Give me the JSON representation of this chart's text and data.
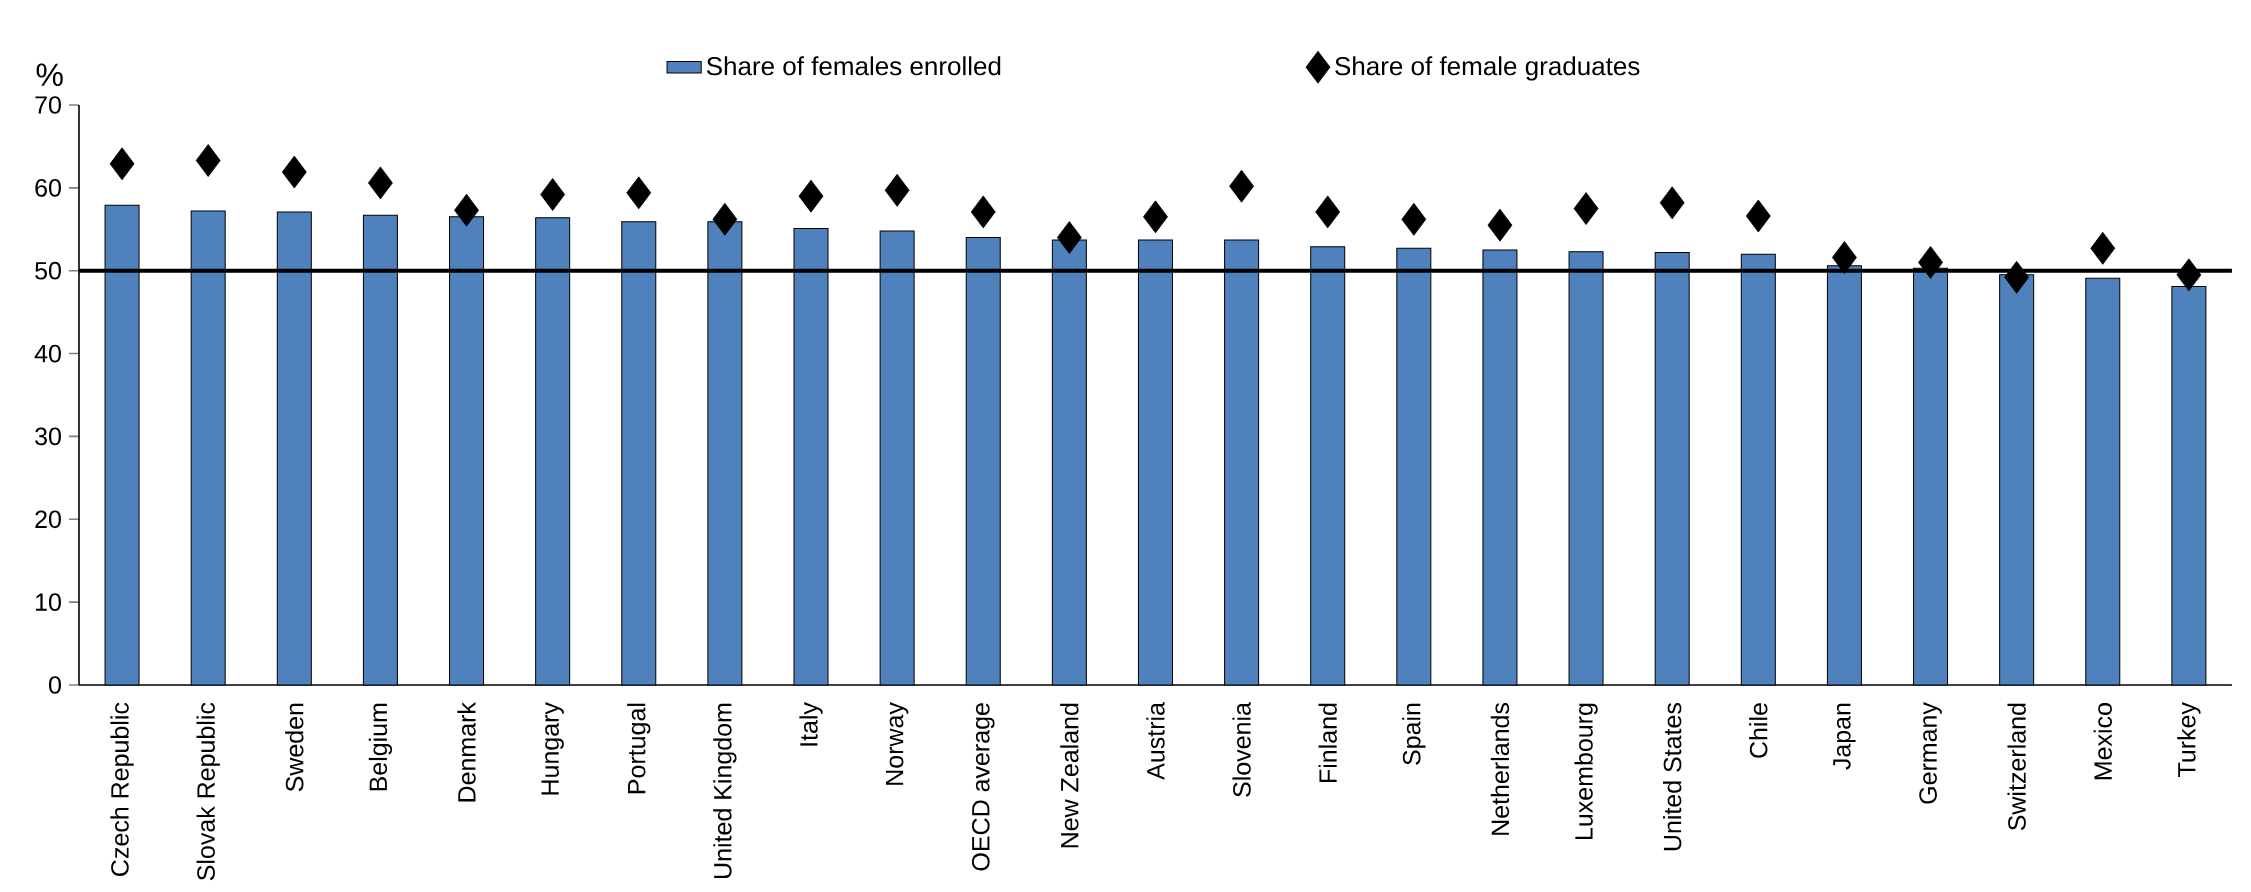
{
  "chart_data": {
    "type": "bar",
    "ylabel": "%",
    "legend": "top",
    "categories": [
      "Czech Republic",
      "Slovak Republic",
      "Sweden",
      "Belgium",
      "Denmark",
      "Hungary",
      "Portugal",
      "United Kingdom",
      "Italy",
      "Norway",
      "OECD average",
      "New Zealand",
      "Austria",
      "Slovenia",
      "Finland",
      "Spain",
      "Netherlands",
      "Luxembourg",
      "United States",
      "Chile",
      "Japan",
      "Germany",
      "Switzerland",
      "Mexico",
      "Turkey"
    ],
    "series": [
      {
        "name": "Share of females enrolled",
        "color": "#4f81bd",
        "values": [
          57.9,
          57.2,
          57.1,
          56.7,
          56.5,
          56.4,
          55.9,
          55.9,
          55.1,
          54.8,
          54.0,
          53.7,
          53.7,
          53.7,
          52.9,
          52.7,
          52.5,
          52.3,
          52.2,
          52.0,
          50.6,
          50.3,
          49.5,
          49.1,
          48.1
        ]
      },
      {
        "name": "Share of female graduates",
        "type": "scatter",
        "marker": "diamond",
        "color": "#000000",
        "values": [
          62.9,
          63.3,
          61.9,
          60.6,
          57.3,
          59.2,
          59.4,
          56.2,
          59.0,
          59.7,
          57.1,
          54.0,
          56.5,
          60.2,
          57.1,
          56.2,
          55.5,
          57.5,
          58.2,
          56.6,
          51.6,
          51.0,
          49.2,
          52.7,
          49.5
        ]
      }
    ],
    "ylim": [
      0,
      70
    ],
    "yticks": [
      0,
      10,
      20,
      30,
      40,
      50,
      60,
      70
    ],
    "ref_lines": [
      {
        "axis": "y",
        "value": 50,
        "color": "#000000"
      }
    ]
  }
}
